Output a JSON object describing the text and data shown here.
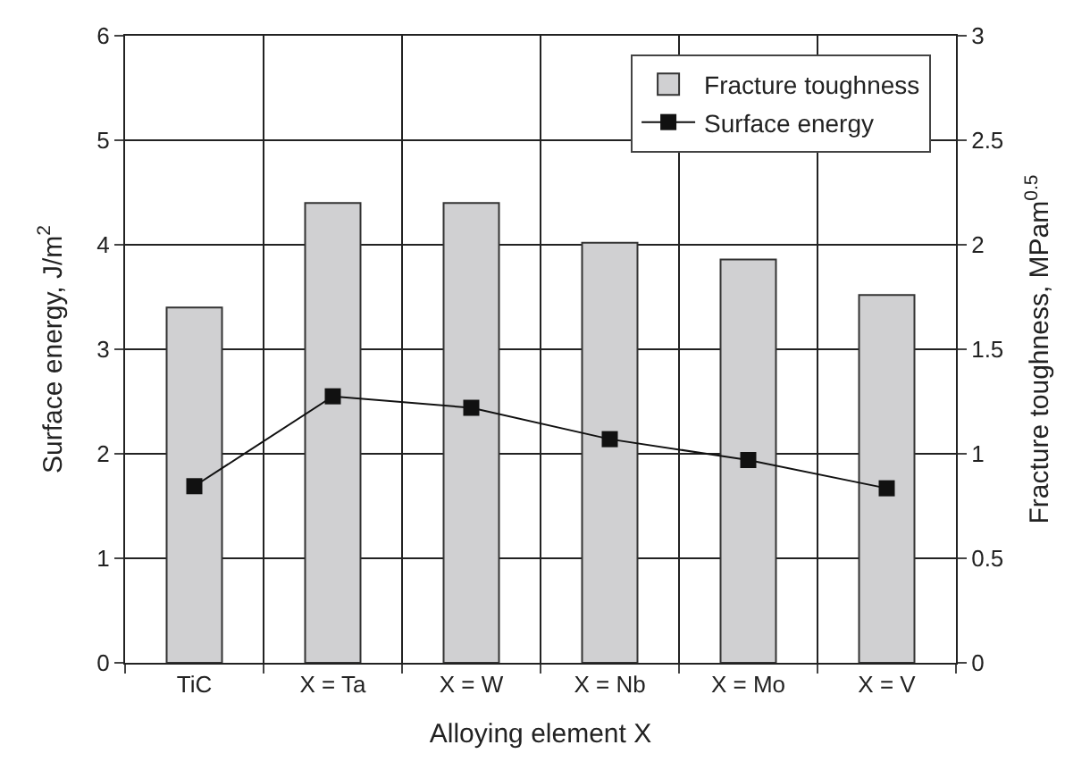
{
  "chart_data": {
    "type": "bar",
    "xlabel": "Alloying element X",
    "ylabel": "Surface energy, J/m$^{2}$",
    "y2label": "Fracture toughness, MPam$^{0.5}$",
    "categories": [
      "TiC",
      "X = Ta",
      "X = W",
      "X = Nb",
      "X = Mo",
      "X = V"
    ],
    "series": [
      {
        "name": "Fracture toughness",
        "axis": "y2",
        "color": "#d0d0d2",
        "values": [
          1.7,
          2.2,
          2.2,
          2.01,
          1.93,
          1.76
        ]
      },
      {
        "name": "Surface energy",
        "type": "line",
        "color": "#111111",
        "marker": "square",
        "values": [
          1.69,
          2.55,
          2.44,
          2.14,
          1.94,
          1.67
        ]
      }
    ],
    "ylim": [
      0,
      6
    ],
    "yticks": [
      0,
      1,
      2,
      3,
      4,
      5,
      6
    ],
    "y2lim": [
      0,
      3
    ],
    "y2ticks": [
      0,
      0.5,
      1,
      1.5,
      2,
      2.5,
      3
    ],
    "grid": true,
    "legend": "top right"
  }
}
